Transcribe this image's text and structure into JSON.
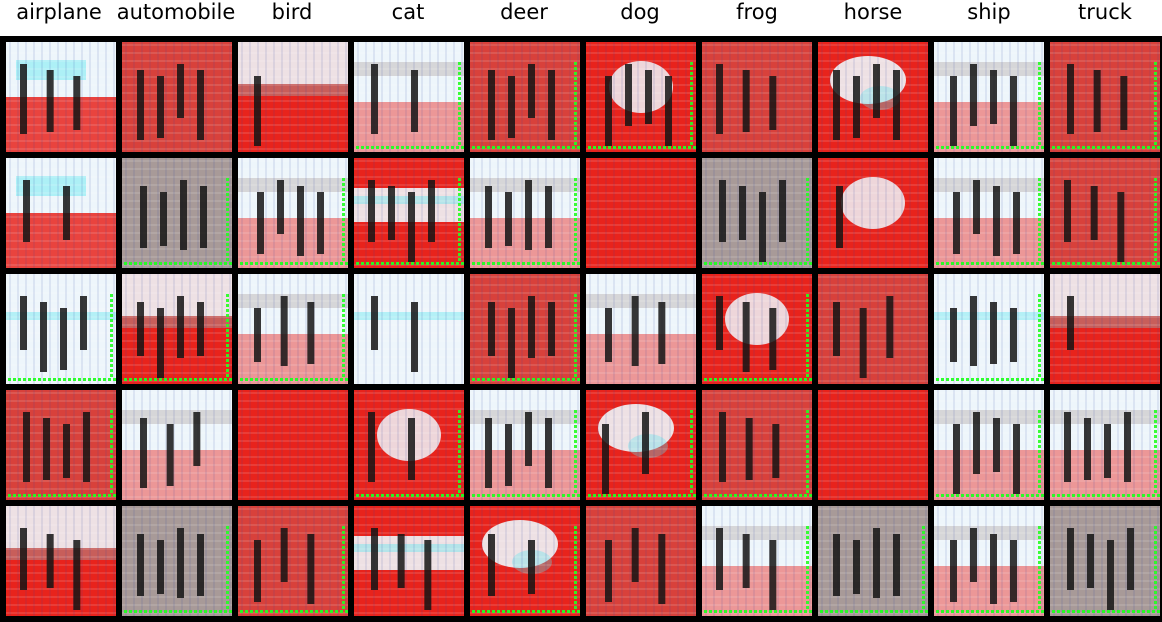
{
  "figure": {
    "class_labels": [
      "airplane",
      "automobile",
      "bird",
      "cat",
      "deer",
      "dog",
      "frog",
      "horse",
      "ship",
      "truck"
    ],
    "rows": 5,
    "colors": {
      "background": "#000000",
      "red": "#e8231c",
      "white": "#eef6fb",
      "cyan": "#5de8f0",
      "green": "#22ff22",
      "gray": "#a89a98",
      "dark": "#141414"
    },
    "tiles": [
      [
        {
          "base": "white",
          "shape": "lower-red",
          "green_frame": false,
          "dark_bars": 3
        },
        {
          "base": "red",
          "shape": "dense-bars",
          "green_frame": false,
          "dark_bars": 4
        },
        {
          "base": "red",
          "shape": "white-top",
          "green_frame": false,
          "dark_bars": 1
        },
        {
          "base": "white",
          "shape": "mixed",
          "green_frame": true,
          "dark_bars": 2
        },
        {
          "base": "red",
          "shape": "dense-bars",
          "green_frame": true,
          "dark_bars": 4
        },
        {
          "base": "red",
          "shape": "white-center",
          "green_frame": true,
          "dark_bars": 4
        },
        {
          "base": "red",
          "shape": "dense-bars",
          "green_frame": false,
          "dark_bars": 3
        },
        {
          "base": "red",
          "shape": "white-blob",
          "green_frame": false,
          "dark_bars": 4
        },
        {
          "base": "white",
          "shape": "mixed",
          "green_frame": true,
          "dark_bars": 4
        },
        {
          "base": "red",
          "shape": "dense-bars",
          "green_frame": true,
          "dark_bars": 3
        }
      ],
      [
        {
          "base": "white",
          "shape": "lower-red",
          "green_frame": false,
          "dark_bars": 2
        },
        {
          "base": "gray",
          "shape": "dense-bars",
          "green_frame": true,
          "dark_bars": 4
        },
        {
          "base": "white",
          "shape": "mixed",
          "green_frame": true,
          "dark_bars": 4
        },
        {
          "base": "red",
          "shape": "white-band",
          "green_frame": true,
          "dark_bars": 4
        },
        {
          "base": "white",
          "shape": "mixed",
          "green_frame": true,
          "dark_bars": 4
        },
        {
          "base": "red",
          "shape": "plain",
          "green_frame": false,
          "dark_bars": 0
        },
        {
          "base": "gray",
          "shape": "dense-bars",
          "green_frame": true,
          "dark_bars": 4
        },
        {
          "base": "red",
          "shape": "white-center",
          "green_frame": false,
          "dark_bars": 1
        },
        {
          "base": "white",
          "shape": "mixed",
          "green_frame": true,
          "dark_bars": 4
        },
        {
          "base": "red",
          "shape": "dense-bars",
          "green_frame": true,
          "dark_bars": 3
        }
      ],
      [
        {
          "base": "white",
          "shape": "white-band",
          "green_frame": true,
          "dark_bars": 4
        },
        {
          "base": "red",
          "shape": "white-top",
          "green_frame": true,
          "dark_bars": 4
        },
        {
          "base": "white",
          "shape": "mixed",
          "green_frame": true,
          "dark_bars": 3
        },
        {
          "base": "white",
          "shape": "white-band",
          "green_frame": false,
          "dark_bars": 2
        },
        {
          "base": "red",
          "shape": "dense-bars",
          "green_frame": true,
          "dark_bars": 4
        },
        {
          "base": "white",
          "shape": "mixed",
          "green_frame": false,
          "dark_bars": 3
        },
        {
          "base": "red",
          "shape": "white-center",
          "green_frame": true,
          "dark_bars": 3
        },
        {
          "base": "red",
          "shape": "dense-bars",
          "green_frame": false,
          "dark_bars": 3
        },
        {
          "base": "white",
          "shape": "white-band",
          "green_frame": true,
          "dark_bars": 4
        },
        {
          "base": "red",
          "shape": "white-top",
          "green_frame": false,
          "dark_bars": 1
        }
      ],
      [
        {
          "base": "red",
          "shape": "dense-bars",
          "green_frame": true,
          "dark_bars": 4
        },
        {
          "base": "white",
          "shape": "mixed",
          "green_frame": false,
          "dark_bars": 3
        },
        {
          "base": "red",
          "shape": "plain",
          "green_frame": false,
          "dark_bars": 0
        },
        {
          "base": "red",
          "shape": "white-center",
          "green_frame": true,
          "dark_bars": 2
        },
        {
          "base": "white",
          "shape": "mixed",
          "green_frame": true,
          "dark_bars": 4
        },
        {
          "base": "red",
          "shape": "white-blob",
          "green_frame": true,
          "dark_bars": 2
        },
        {
          "base": "red",
          "shape": "dense-bars",
          "green_frame": true,
          "dark_bars": 3
        },
        {
          "base": "red",
          "shape": "plain",
          "green_frame": false,
          "dark_bars": 0
        },
        {
          "base": "white",
          "shape": "mixed",
          "green_frame": true,
          "dark_bars": 4
        },
        {
          "base": "white",
          "shape": "mixed",
          "green_frame": true,
          "dark_bars": 4
        }
      ],
      [
        {
          "base": "red",
          "shape": "white-top",
          "green_frame": false,
          "dark_bars": 3
        },
        {
          "base": "gray",
          "shape": "dense-bars",
          "green_frame": true,
          "dark_bars": 4
        },
        {
          "base": "red",
          "shape": "dense-bars",
          "green_frame": true,
          "dark_bars": 3
        },
        {
          "base": "red",
          "shape": "white-band",
          "green_frame": false,
          "dark_bars": 3
        },
        {
          "base": "red",
          "shape": "white-blob",
          "green_frame": true,
          "dark_bars": 2
        },
        {
          "base": "red",
          "shape": "dense-bars",
          "green_frame": false,
          "dark_bars": 3
        },
        {
          "base": "white",
          "shape": "mixed",
          "green_frame": true,
          "dark_bars": 3
        },
        {
          "base": "gray",
          "shape": "dense-bars",
          "green_frame": true,
          "dark_bars": 4
        },
        {
          "base": "white",
          "shape": "mixed",
          "green_frame": true,
          "dark_bars": 4
        },
        {
          "base": "gray",
          "shape": "dense-bars",
          "green_frame": true,
          "dark_bars": 4
        }
      ]
    ]
  }
}
